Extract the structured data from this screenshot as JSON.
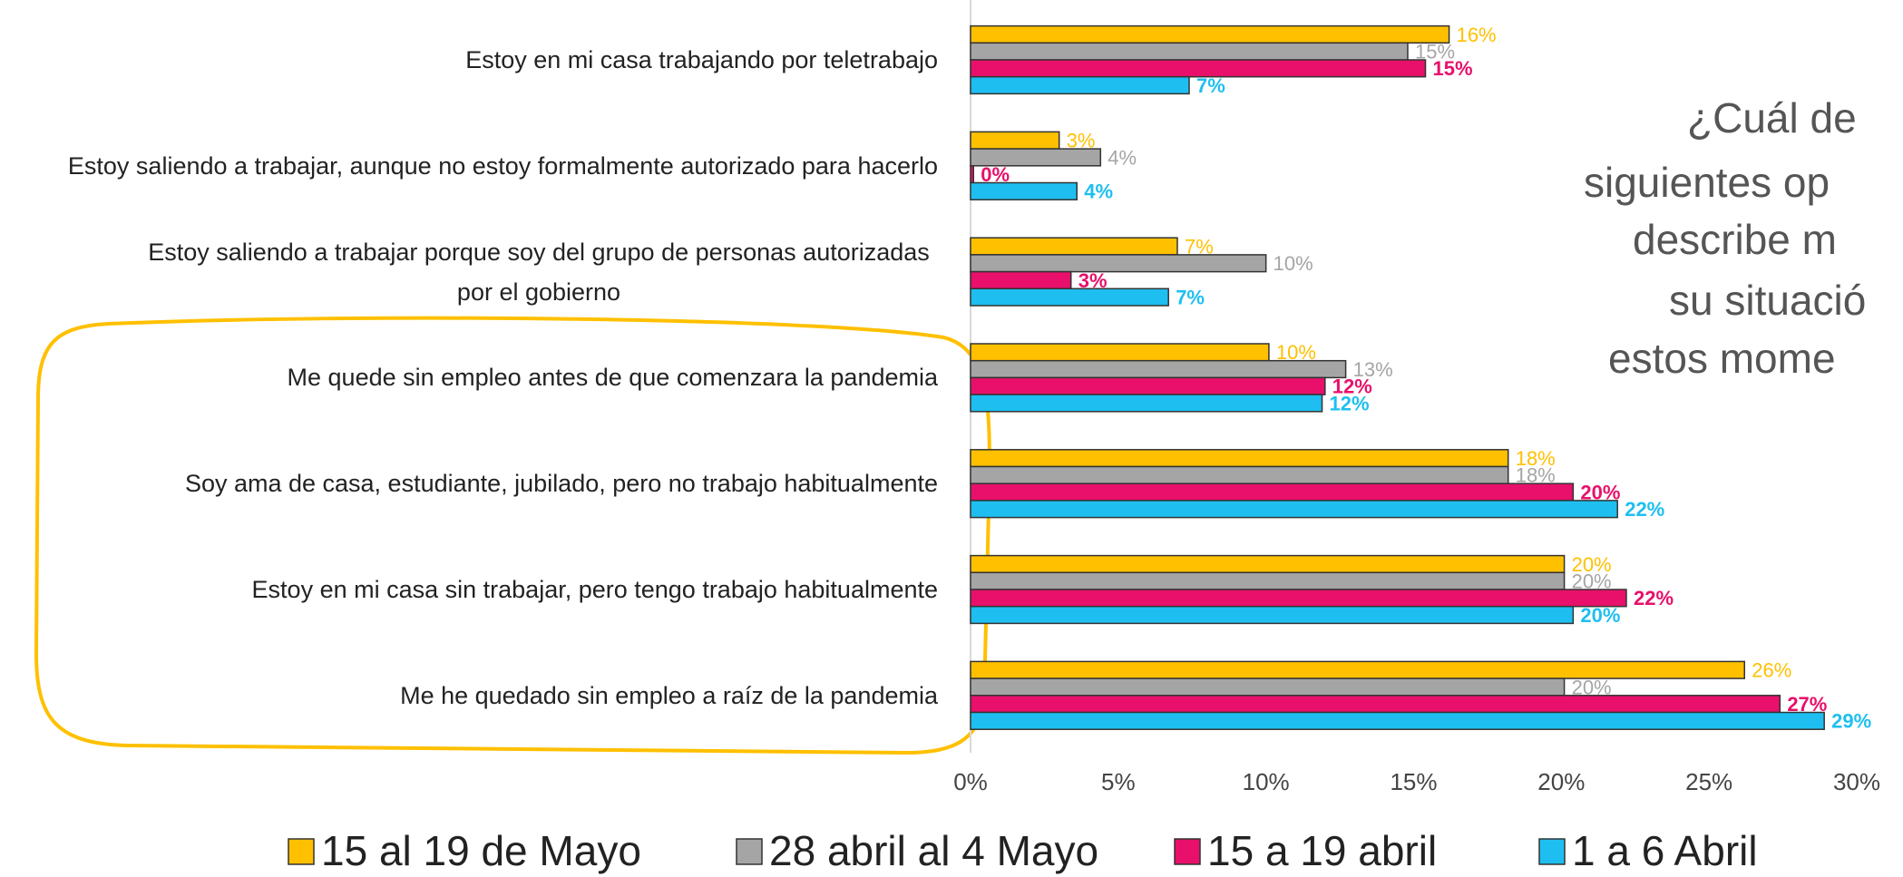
{
  "chart_data": {
    "type": "hbar",
    "title_lines": [
      "¿Cuál de",
      "siguientes op",
      "describe m",
      "su situació",
      "estos mome"
    ],
    "categories": [
      "Estoy en mi casa trabajando por teletrabajo",
      "Estoy saliendo a trabajar, aunque no estoy formalmente autorizado para hacerlo",
      "Estoy saliendo a trabajar porque soy del grupo de personas autorizadas por el gobierno",
      "Me quede sin empleo antes de que comenzara la pandemia",
      "Soy ama de casa, estudiante, jubilado, pero no trabajo habitualmente",
      "Estoy en mi casa sin trabajar, pero tengo trabajo habitualmente",
      "Me he quedado sin empleo a raíz de la pandemia"
    ],
    "series": [
      {
        "name": "15 al 19 de Mayo",
        "color": "#FFC000",
        "values": [
          16.2,
          3.0,
          7.0,
          10.1,
          18.2,
          20.1,
          26.2
        ],
        "value_labels": [
          "16%",
          "3%",
          "7%",
          "10%",
          "18%",
          "20%",
          "26%"
        ]
      },
      {
        "name": "28 abril al 4 Mayo",
        "color": "#A5A5A5",
        "values": [
          14.8,
          4.4,
          10.0,
          12.7,
          18.2,
          20.1,
          20.1
        ],
        "value_labels": [
          "15%",
          "4%",
          "10%",
          "13%",
          "18%",
          "20%",
          "20%"
        ]
      },
      {
        "name": "15 a 19 abril",
        "color": "#E8106A",
        "values": [
          15.4,
          0.1,
          3.4,
          12.0,
          20.4,
          22.2,
          27.4
        ],
        "value_labels": [
          "15%",
          "0%",
          "3%",
          "12%",
          "20%",
          "22%",
          "27%"
        ]
      },
      {
        "name": "1 a 6 Abril",
        "color": "#1EBFF0",
        "values": [
          7.4,
          3.6,
          6.7,
          11.9,
          21.9,
          20.4,
          28.9
        ],
        "value_labels": [
          "7%",
          "4%",
          "7%",
          "12%",
          "22%",
          "20%",
          "29%"
        ]
      }
    ],
    "xlim": [
      0,
      30
    ],
    "xticks": [
      {
        "value": 0,
        "label": "0%"
      },
      {
        "value": 5,
        "label": "5%"
      },
      {
        "value": 10,
        "label": "10%"
      },
      {
        "value": 15,
        "label": "15%"
      },
      {
        "value": 20,
        "label": "20%"
      },
      {
        "value": 25,
        "label": "25%"
      },
      {
        "value": 30,
        "label": "30%"
      }
    ],
    "grid": false,
    "legend": "bottom"
  }
}
